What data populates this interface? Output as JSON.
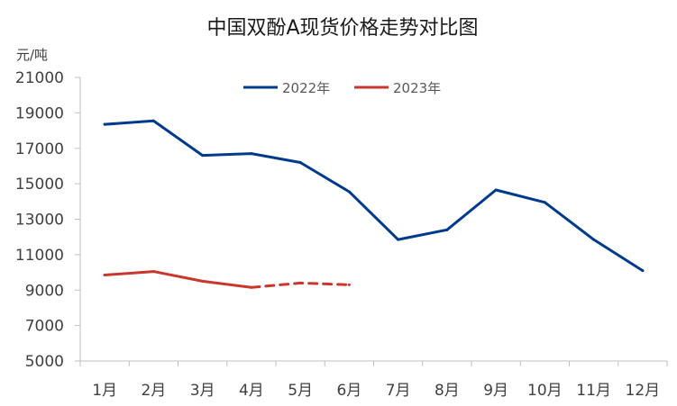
{
  "chart_data": {
    "type": "line",
    "title": "中国双酚A现货价格走势对比图",
    "ylabel": "元/吨",
    "xlabel": "",
    "categories": [
      "1月",
      "2月",
      "3月",
      "4月",
      "5月",
      "6月",
      "7月",
      "8月",
      "9月",
      "10月",
      "11月",
      "12月"
    ],
    "yticks": [
      "21000",
      "19000",
      "17000",
      "15000",
      "13000",
      "11000",
      "9000",
      "7000",
      "5000"
    ],
    "ylim": [
      5000,
      21000
    ],
    "grid": false,
    "legend_position": "top",
    "series": [
      {
        "name": "2022年",
        "color": "#003a8c",
        "values": [
          18350,
          18550,
          16600,
          16700,
          16200,
          14550,
          11850,
          12400,
          14650,
          13950,
          11850,
          10100
        ]
      },
      {
        "name": "2023年",
        "color": "#c8372d",
        "values": [
          9850,
          10050,
          9500,
          9150,
          9400,
          9300,
          null,
          null,
          null,
          null,
          null,
          null
        ],
        "dashed_from_index": 3
      }
    ]
  }
}
